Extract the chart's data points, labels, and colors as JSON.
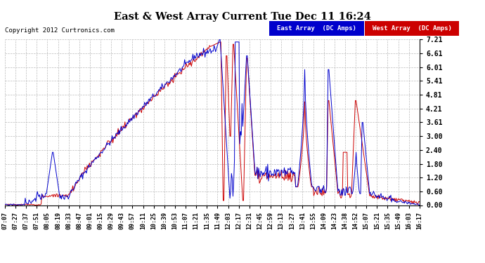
{
  "title": "East & West Array Current Tue Dec 11 16:24",
  "copyright": "Copyright 2012 Curtronics.com",
  "legend_east": "East Array  (DC Amps)",
  "legend_west": "West Array  (DC Amps)",
  "east_color": "#0000CC",
  "west_color": "#CC0000",
  "bg_color": "#FFFFFF",
  "grid_color": "#BBBBBB",
  "yticks": [
    0.0,
    0.6,
    1.2,
    1.8,
    2.4,
    3.0,
    3.61,
    4.21,
    4.81,
    5.41,
    6.01,
    6.61,
    7.21
  ],
  "ymax": 7.21,
  "ymin": 0.0,
  "x_labels": [
    "07:07",
    "07:27",
    "07:37",
    "07:51",
    "08:05",
    "08:19",
    "08:33",
    "08:47",
    "09:01",
    "09:15",
    "09:29",
    "09:43",
    "09:57",
    "10:11",
    "10:25",
    "10:39",
    "10:53",
    "11:07",
    "11:21",
    "11:35",
    "11:49",
    "12:03",
    "12:17",
    "12:31",
    "12:45",
    "12:59",
    "13:13",
    "13:27",
    "13:41",
    "13:55",
    "14:09",
    "14:23",
    "14:38",
    "14:52",
    "15:07",
    "15:21",
    "15:35",
    "15:49",
    "16:03",
    "16:17"
  ]
}
